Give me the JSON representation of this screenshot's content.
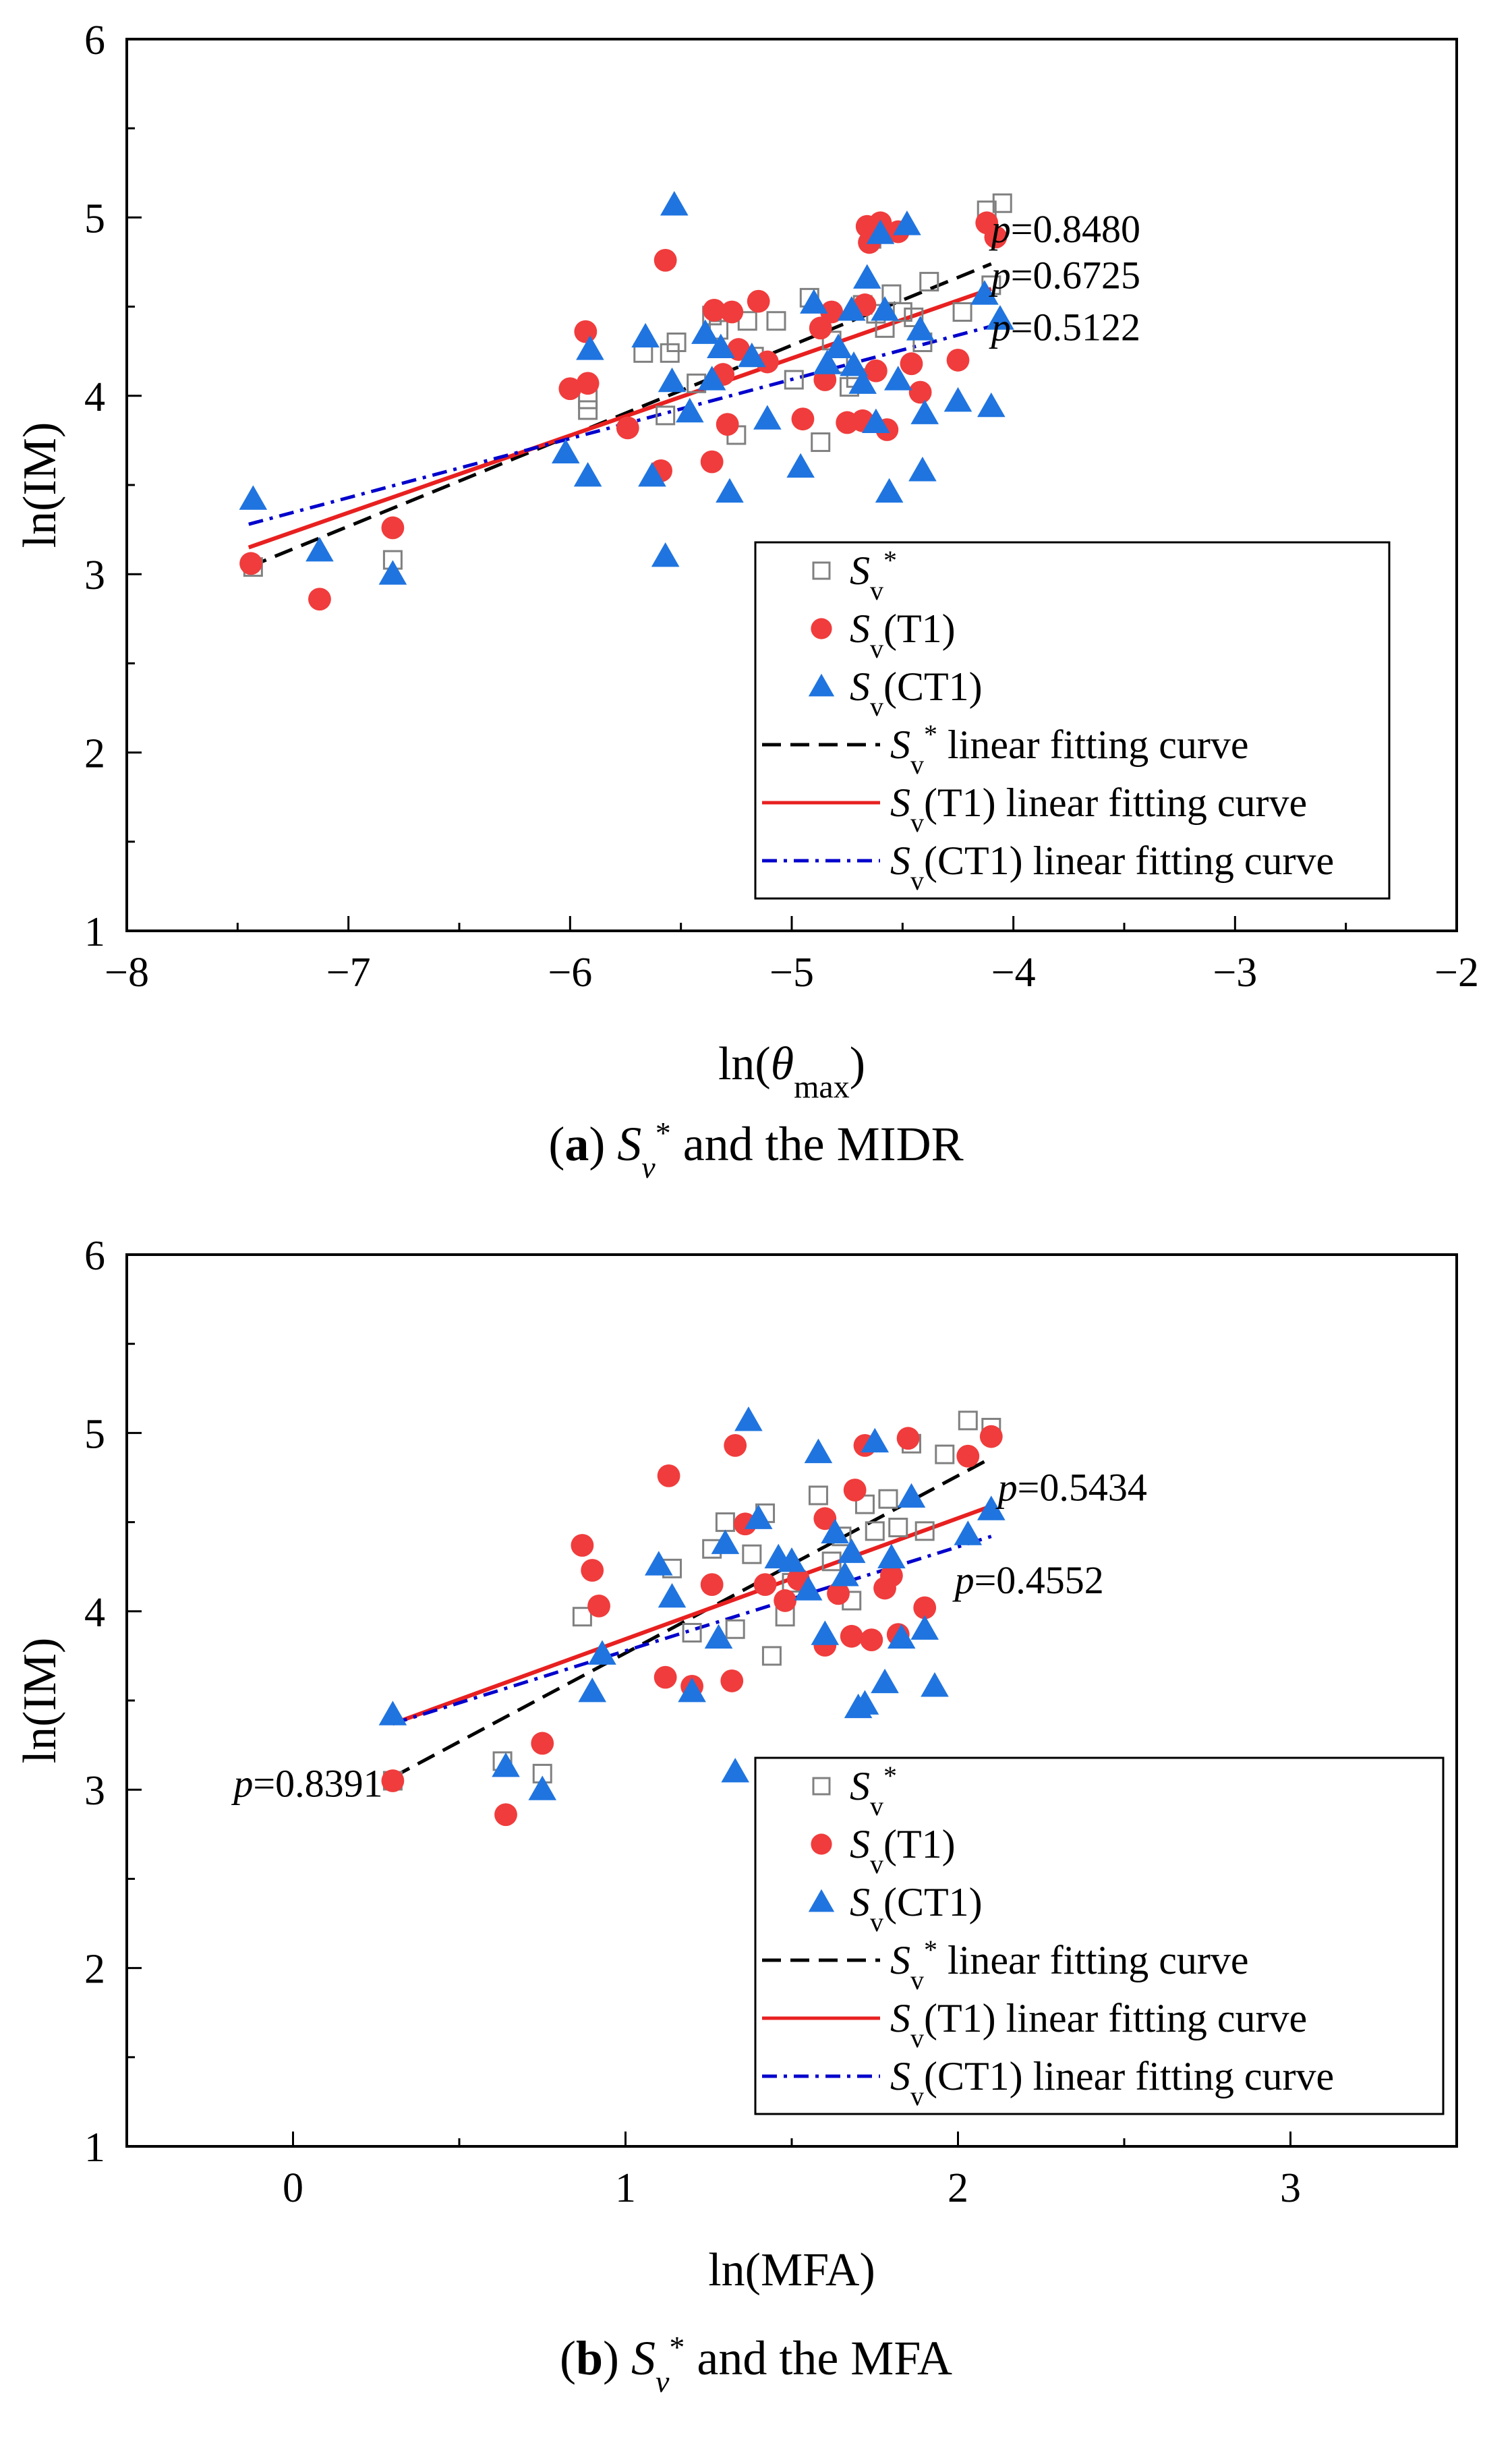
{
  "chart_data": [
    {
      "type": "scatter",
      "panel": "a",
      "caption": {
        "label": "(a)",
        "symbol": "S",
        "sub": "v",
        "sup": "*",
        "text": "and the MIDR"
      },
      "xlabel": "ln(θmax)",
      "xlabel_parts": {
        "pre": "ln(",
        "theta": "θ",
        "sub": "max",
        "post": ")"
      },
      "ylabel": "ln(IM)",
      "xlim": [
        -8,
        -2
      ],
      "ylim": [
        1,
        6
      ],
      "xticks": [
        -8,
        -7,
        -6,
        -5,
        -4,
        -3,
        -2
      ],
      "xtick_labels": [
        "−8",
        "−7",
        "−6",
        "−5",
        "−4",
        "−3",
        "−2"
      ],
      "yticks": [
        1,
        2,
        3,
        4,
        5,
        6
      ],
      "ytick_labels": [
        "1",
        "2",
        "3",
        "4",
        "5",
        "6"
      ],
      "series": [
        {
          "name": "Sv*",
          "marker": "square",
          "color": "#808080",
          "x": [
            -7.43,
            -6.8,
            -5.92,
            -5.92,
            -5.67,
            -5.57,
            -5.55,
            -5.52,
            -5.43,
            -5.36,
            -5.33,
            -5.25,
            -5.2,
            -5.17,
            -5.07,
            -4.99,
            -4.92,
            -4.87,
            -4.82,
            -4.79,
            -4.74,
            -4.71,
            -4.68,
            -4.64,
            -4.62,
            -4.58,
            -4.55,
            -4.5,
            -4.45,
            -4.41,
            -4.38,
            -4.23,
            -4.12,
            -4.1,
            -4.05
          ],
          "y": [
            3.04,
            3.08,
            3.92,
            3.98,
            4.24,
            3.89,
            4.24,
            4.3,
            4.07,
            4.45,
            4.37,
            3.78,
            4.42,
            4.22,
            4.42,
            4.09,
            4.55,
            3.74,
            4.31,
            4.18,
            4.05,
            4.1,
            4.51,
            4.88,
            4.46,
            4.38,
            4.57,
            4.47,
            4.44,
            4.3,
            4.64,
            4.47,
            5.04,
            4.62,
            5.08
          ]
        },
        {
          "name": "Sv(T1)",
          "marker": "circle",
          "color": "#f03c3c",
          "x": [
            -7.44,
            -7.13,
            -6.8,
            -6.0,
            -5.93,
            -5.92,
            -5.74,
            -5.59,
            -5.57,
            -5.36,
            -5.35,
            -5.31,
            -5.29,
            -5.27,
            -5.24,
            -5.15,
            -5.11,
            -4.95,
            -4.87,
            -4.85,
            -4.82,
            -4.75,
            -4.68,
            -4.67,
            -4.66,
            -4.65,
            -4.62,
            -4.6,
            -4.57,
            -4.52,
            -4.46,
            -4.42,
            -4.25,
            -4.12,
            -4.08
          ],
          "y": [
            3.06,
            2.86,
            3.26,
            4.04,
            4.36,
            4.07,
            3.82,
            3.58,
            4.76,
            3.63,
            4.48,
            4.12,
            3.84,
            4.47,
            4.26,
            4.53,
            4.19,
            3.87,
            4.38,
            4.09,
            4.47,
            3.85,
            3.86,
            4.51,
            4.95,
            4.86,
            4.14,
            4.97,
            3.81,
            4.92,
            4.18,
            4.02,
            4.2,
            4.97,
            4.89
          ]
        },
        {
          "name": "Sv(CT1)",
          "marker": "triangle",
          "color": "#1f74e0",
          "x": [
            -7.43,
            -7.13,
            -6.8,
            -6.02,
            -5.92,
            -5.91,
            -5.66,
            -5.63,
            -5.57,
            -5.54,
            -5.53,
            -5.46,
            -5.39,
            -5.36,
            -5.32,
            -5.28,
            -5.18,
            -5.11,
            -4.96,
            -4.9,
            -4.84,
            -4.79,
            -4.73,
            -4.72,
            -4.68,
            -4.66,
            -4.62,
            -4.6,
            -4.58,
            -4.56,
            -4.52,
            -4.48,
            -4.42,
            -4.41,
            -4.4,
            -4.25,
            -4.13,
            -4.1,
            -4.06
          ],
          "y": [
            3.42,
            3.13,
            3.0,
            3.68,
            3.55,
            4.26,
            4.33,
            3.55,
            3.1,
            4.08,
            5.07,
            3.91,
            4.35,
            4.09,
            4.27,
            3.46,
            4.22,
            3.87,
            3.6,
            4.52,
            4.18,
            4.27,
            4.48,
            4.17,
            4.07,
            4.66,
            3.85,
            4.91,
            4.48,
            3.46,
            4.09,
            4.96,
            4.37,
            3.58,
            3.9,
            3.97,
            4.57,
            3.94,
            4.43
          ]
        }
      ],
      "fits": [
        {
          "name": "Sv* linear fitting curve",
          "style": "dashed",
          "color": "#000000",
          "x": [
            -7.45,
            -4.1
          ],
          "y": [
            3.04,
            4.74
          ]
        },
        {
          "name": "Sv(T1) linear fitting curve",
          "style": "solid",
          "color": "#e82020",
          "x": [
            -7.45,
            -4.1
          ],
          "y": [
            3.15,
            4.6
          ]
        },
        {
          "name": "Sv(CT1) linear fitting curve",
          "style": "dashdot",
          "color": "#0000cc",
          "x": [
            -7.45,
            -4.1
          ],
          "y": [
            3.28,
            4.39
          ]
        }
      ],
      "annotations": [
        {
          "prefix": "p",
          "value": "=0.8480",
          "x": -4.1,
          "y": 4.93
        },
        {
          "prefix": "p",
          "value": "=0.6725",
          "x": -4.1,
          "y": 4.67
        },
        {
          "prefix": "p",
          "value": "=0.5122",
          "x": -4.1,
          "y": 4.38
        }
      ],
      "legend": {
        "placement": "bottom-right",
        "entries": [
          {
            "marker": "square",
            "sym": "S",
            "sub": "v",
            "sup": "*",
            "paren": "",
            "text": ""
          },
          {
            "marker": "circle",
            "sym": "S",
            "sub": "v",
            "sup": "",
            "paren": "(T1)",
            "text": ""
          },
          {
            "marker": "triangle",
            "sym": "S",
            "sub": "v",
            "sup": "",
            "paren": "(CT1)",
            "text": ""
          },
          {
            "marker": "dashed",
            "sym": "S",
            "sub": "v",
            "sup": "*",
            "paren": "",
            "text": "linear fitting curve"
          },
          {
            "marker": "solid",
            "sym": "S",
            "sub": "v",
            "sup": "",
            "paren": "(T1)",
            "text": "linear fitting curve"
          },
          {
            "marker": "dashdot",
            "sym": "S",
            "sub": "v",
            "sup": "",
            "paren": "(CT1)",
            "text": "linear fitting curve"
          }
        ]
      }
    },
    {
      "type": "scatter",
      "panel": "b",
      "caption": {
        "label": "(b)",
        "symbol": "S",
        "sub": "v",
        "sup": "*",
        "text": "and the MFA"
      },
      "xlabel": "ln(MFA)",
      "ylabel": "ln(IM)",
      "xlim": [
        -0.5,
        3.5
      ],
      "ylim": [
        1,
        6
      ],
      "xticks": [
        0,
        1,
        2,
        3
      ],
      "xtick_labels": [
        "0",
        "1",
        "2",
        "3"
      ],
      "yticks": [
        1,
        2,
        3,
        4,
        5,
        6
      ],
      "ytick_labels": [
        "1",
        "2",
        "3",
        "4",
        "5",
        "6"
      ],
      "series": [
        {
          "name": "Sv*",
          "marker": "square",
          "color": "#808080",
          "x": [
            0.3,
            0.63,
            0.75,
            0.87,
            1.14,
            1.2,
            1.26,
            1.3,
            1.33,
            1.38,
            1.42,
            1.44,
            1.48,
            1.5,
            1.58,
            1.62,
            1.65,
            1.68,
            1.72,
            1.75,
            1.79,
            1.82,
            1.86,
            1.9,
            1.96,
            2.03,
            2.1
          ],
          "y": [
            3.05,
            3.16,
            3.09,
            3.97,
            4.24,
            3.88,
            4.35,
            4.5,
            3.9,
            4.32,
            4.55,
            3.75,
            3.97,
            4.16,
            4.65,
            4.28,
            4.42,
            4.06,
            4.6,
            4.45,
            4.63,
            4.47,
            4.94,
            4.45,
            4.88,
            5.07,
            5.03
          ]
        },
        {
          "name": "Sv(T1)",
          "marker": "circle",
          "color": "#f03c3c",
          "x": [
            0.3,
            0.64,
            0.75,
            0.87,
            0.9,
            0.92,
            1.12,
            1.13,
            1.2,
            1.26,
            1.32,
            1.33,
            1.36,
            1.42,
            1.48,
            1.52,
            1.6,
            1.6,
            1.64,
            1.68,
            1.69,
            1.72,
            1.74,
            1.78,
            1.8,
            1.82,
            1.85,
            1.9,
            2.03,
            2.1
          ],
          "y": [
            3.05,
            2.86,
            3.26,
            4.37,
            4.23,
            4.03,
            3.63,
            4.76,
            3.58,
            4.15,
            3.61,
            4.93,
            4.49,
            4.15,
            4.06,
            4.18,
            3.81,
            4.52,
            4.1,
            3.86,
            4.68,
            4.93,
            3.84,
            4.13,
            4.2,
            3.87,
            4.97,
            4.02,
            4.87,
            4.98
          ]
        },
        {
          "name": "Sv(CT1)",
          "marker": "triangle",
          "color": "#1f74e0",
          "x": [
            0.3,
            0.64,
            0.75,
            0.9,
            0.93,
            1.1,
            1.14,
            1.2,
            1.28,
            1.3,
            1.33,
            1.37,
            1.4,
            1.46,
            1.5,
            1.55,
            1.58,
            1.6,
            1.63,
            1.66,
            1.68,
            1.7,
            1.72,
            1.75,
            1.78,
            1.8,
            1.83,
            1.86,
            1.9,
            1.93,
            2.03,
            2.1
          ],
          "y": [
            3.42,
            3.13,
            3.0,
            3.55,
            3.76,
            4.26,
            4.08,
            3.55,
            3.85,
            4.38,
            3.1,
            5.07,
            4.52,
            4.3,
            4.28,
            4.12,
            4.89,
            3.87,
            4.44,
            4.2,
            4.33,
            3.46,
            3.48,
            4.95,
            3.6,
            4.3,
            3.85,
            4.64,
            3.9,
            3.58,
            4.43,
            4.57
          ]
        }
      ],
      "fits": [
        {
          "name": "Sv* linear fitting curve",
          "style": "dashed",
          "color": "#000000",
          "x": [
            0.3,
            2.1
          ],
          "y": [
            3.07,
            4.86
          ]
        },
        {
          "name": "Sv(T1) linear fitting curve",
          "style": "solid",
          "color": "#e82020",
          "x": [
            0.3,
            2.1
          ],
          "y": [
            3.37,
            4.59
          ]
        },
        {
          "name": "Sv(CT1) linear fitting curve",
          "style": "dashdot",
          "color": "#0000cc",
          "x": [
            0.3,
            2.1
          ],
          "y": [
            3.37,
            4.42
          ]
        }
      ],
      "annotations": [
        {
          "prefix": "p",
          "value": "=0.5434",
          "x": 2.12,
          "y": 4.69,
          "anchor": "start"
        },
        {
          "prefix": "p",
          "value": "=0.4552",
          "x": 1.99,
          "y": 4.17,
          "anchor": "start"
        },
        {
          "prefix": "p",
          "value": "=0.8391",
          "x": 0.27,
          "y": 3.03,
          "anchor": "end"
        }
      ],
      "legend": {
        "placement": "bottom-right",
        "entries": [
          {
            "marker": "square",
            "sym": "S",
            "sub": "v",
            "sup": "*",
            "paren": "",
            "text": ""
          },
          {
            "marker": "circle",
            "sym": "S",
            "sub": "v",
            "sup": "",
            "paren": "(T1)",
            "text": ""
          },
          {
            "marker": "triangle",
            "sym": "S",
            "sub": "v",
            "sup": "",
            "paren": "(CT1)",
            "text": ""
          },
          {
            "marker": "dashed",
            "sym": "S",
            "sub": "v",
            "sup": "*",
            "paren": "",
            "text": "linear fitting curve"
          },
          {
            "marker": "solid",
            "sym": "S",
            "sub": "v",
            "sup": "",
            "paren": "(T1)",
            "text": "linear fitting curve"
          },
          {
            "marker": "dashdot",
            "sym": "S",
            "sub": "v",
            "sup": "",
            "paren": "(CT1)",
            "text": "linear fitting curve"
          }
        ]
      }
    }
  ]
}
